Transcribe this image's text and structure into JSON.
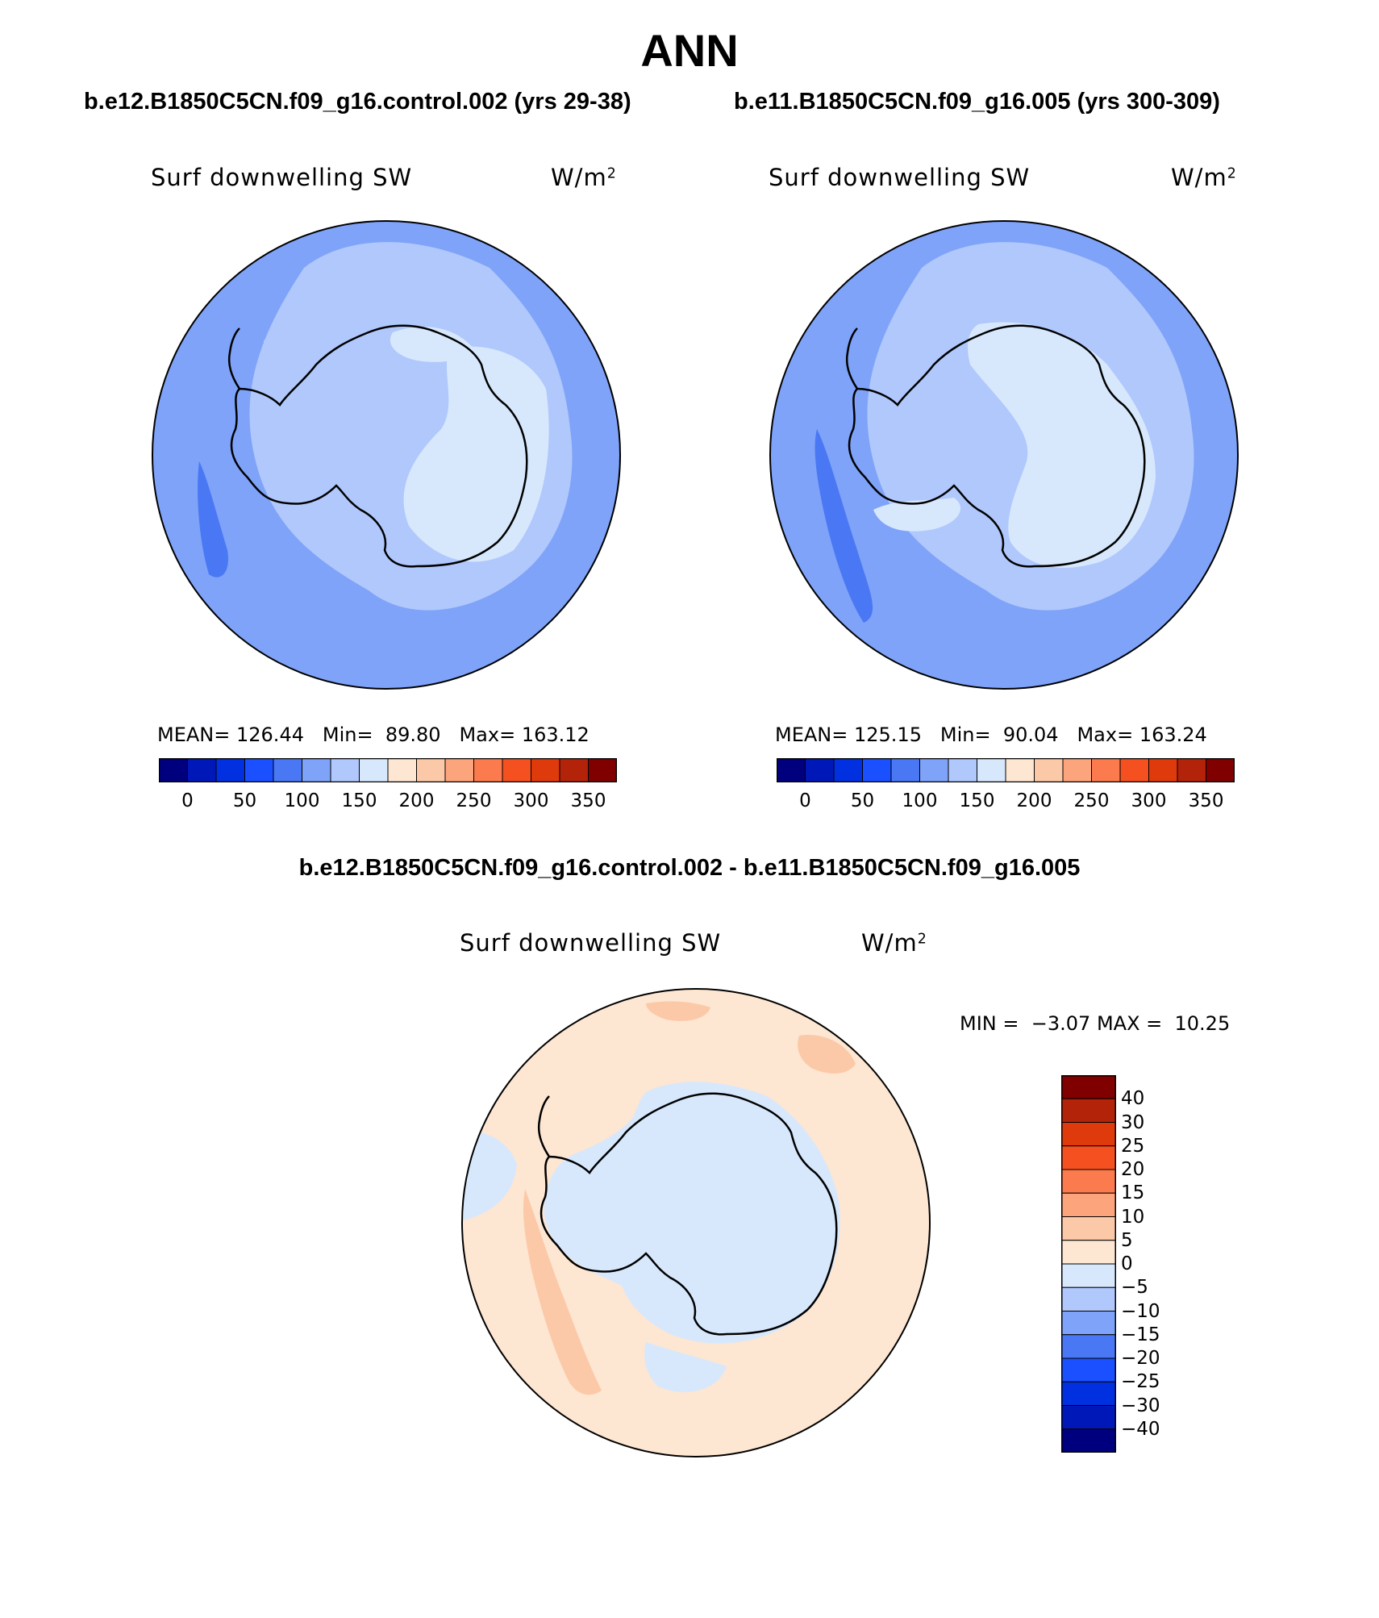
{
  "title": "ANN",
  "panels": [
    {
      "id": "left",
      "case_title": "b.e12.B1850C5CN.f09_g16.control.002 (yrs 29-38)",
      "variable": "Surf downwelling SW",
      "units_base": "W/m",
      "units_exp": "2",
      "stats": {
        "mean_label": "MEAN=",
        "mean": "126.44",
        "min_label": "Min=",
        "min": "89.80",
        "max_label": "Max=",
        "max": "163.12"
      }
    },
    {
      "id": "right",
      "case_title": "b.e11.B1850C5CN.f09_g16.005 (yrs 300-309)",
      "variable": "Surf downwelling SW",
      "units_base": "W/m",
      "units_exp": "2",
      "stats": {
        "mean_label": "MEAN=",
        "mean": "125.15",
        "min_label": "Min=",
        "min": "90.04",
        "max_label": "Max=",
        "max": "163.24"
      }
    }
  ],
  "abs_colorbar": {
    "colors": [
      "#00007f",
      "#0018b8",
      "#0030e0",
      "#1a50ff",
      "#4a78f5",
      "#7fa3f8",
      "#b0c8fc",
      "#d7e8fd",
      "#fde6d2",
      "#fcc9a8",
      "#fca47c",
      "#fb7a4e",
      "#f5501f",
      "#de3a0c",
      "#b2230a",
      "#800000"
    ],
    "tick_labels": [
      "0",
      "50",
      "100",
      "150",
      "200",
      "250",
      "300",
      "350"
    ]
  },
  "diff_panel": {
    "case_title": "b.e12.B1850C5CN.f09_g16.control.002 - b.e11.B1850C5CN.f09_g16.005",
    "variable": "Surf downwelling SW",
    "units_base": "W/m",
    "units_exp": "2",
    "stats": {
      "min_label": "MIN =",
      "min": "−3.07",
      "max_label": "MAX =",
      "max": "10.25"
    }
  },
  "diff_colorbar": {
    "colors": [
      "#800000",
      "#b2230a",
      "#de3a0c",
      "#f5501f",
      "#fb7a4e",
      "#fca47c",
      "#fcc9a8",
      "#fde6d2",
      "#d7e8fd",
      "#b0c8fc",
      "#7fa3f8",
      "#4a78f5",
      "#1a50ff",
      "#0030e0",
      "#0018b8",
      "#00007f"
    ],
    "tick_labels": [
      "40",
      "30",
      "25",
      "20",
      "15",
      "10",
      "5",
      "0",
      "−5",
      "−10",
      "−15",
      "−20",
      "−25",
      "−30",
      "−40"
    ]
  },
  "map_colors": {
    "ocean_mid": "#7fa3f8",
    "ring": "#b0c8fc",
    "plateau": "#d7e8fd",
    "low_pocket": "#4a78f5",
    "diff_pos": "#fde6d2",
    "diff_pos2": "#fcc9a8",
    "diff_neg": "#d7e8fd"
  }
}
